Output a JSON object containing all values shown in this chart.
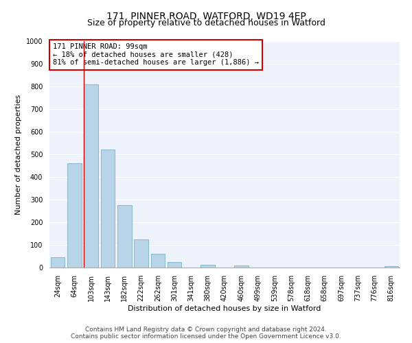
{
  "title": "171, PINNER ROAD, WATFORD, WD19 4EP",
  "subtitle": "Size of property relative to detached houses in Watford",
  "xlabel": "Distribution of detached houses by size in Watford",
  "ylabel": "Number of detached properties",
  "bar_labels": [
    "24sqm",
    "64sqm",
    "103sqm",
    "143sqm",
    "182sqm",
    "222sqm",
    "262sqm",
    "301sqm",
    "341sqm",
    "380sqm",
    "420sqm",
    "460sqm",
    "499sqm",
    "539sqm",
    "578sqm",
    "618sqm",
    "658sqm",
    "697sqm",
    "737sqm",
    "776sqm",
    "816sqm"
  ],
  "bar_values": [
    46,
    460,
    810,
    520,
    275,
    125,
    60,
    25,
    0,
    12,
    0,
    8,
    0,
    0,
    0,
    0,
    0,
    0,
    0,
    0,
    5
  ],
  "bar_color": "#b8d4e8",
  "bar_edge_color": "#7aafc8",
  "background_color": "#eef2fa",
  "grid_color": "#ffffff",
  "vline_x_index": 2,
  "vline_color": "#cc0000",
  "annotation_text": "171 PINNER ROAD: 99sqm\n← 18% of detached houses are smaller (428)\n81% of semi-detached houses are larger (1,886) →",
  "annotation_box_color": "#ffffff",
  "annotation_box_edge_color": "#cc0000",
  "ylim": [
    0,
    1000
  ],
  "yticks": [
    0,
    100,
    200,
    300,
    400,
    500,
    600,
    700,
    800,
    900,
    1000
  ],
  "footer_line1": "Contains HM Land Registry data © Crown copyright and database right 2024.",
  "footer_line2": "Contains public sector information licensed under the Open Government Licence v3.0.",
  "title_fontsize": 10,
  "subtitle_fontsize": 9,
  "axis_label_fontsize": 8,
  "tick_fontsize": 7,
  "annotation_fontsize": 7.5,
  "footer_fontsize": 6.5
}
